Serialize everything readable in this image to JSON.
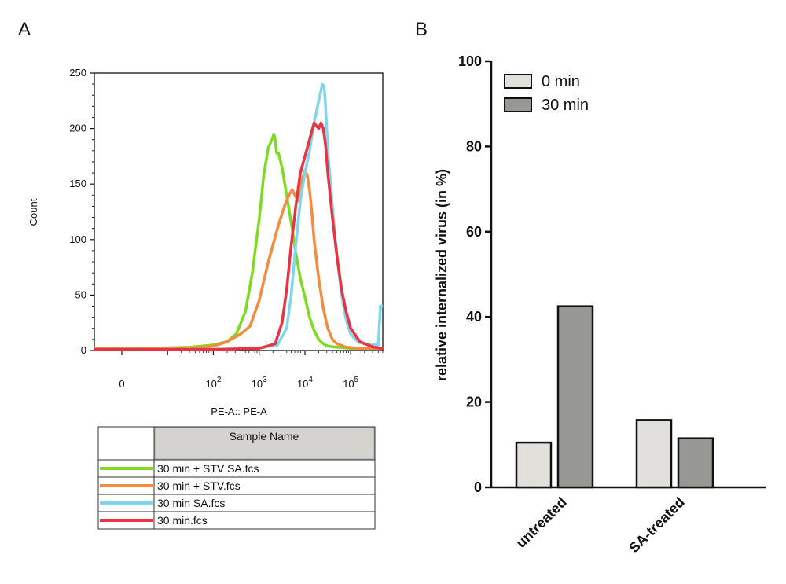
{
  "panel_a": {
    "label": "A"
  },
  "panel_b": {
    "label": "B"
  },
  "chart_data": [
    {
      "type": "line",
      "title": "",
      "xlabel": "PE-A:: PE-A",
      "ylabel": "Count",
      "xscale": "biexponential",
      "x_tick_labels": [
        {
          "base": "0",
          "exp": ""
        },
        {
          "base": "10",
          "exp": "2"
        },
        {
          "base": "10",
          "exp": "3"
        },
        {
          "base": "10",
          "exp": "4"
        },
        {
          "base": "10",
          "exp": "5"
        }
      ],
      "x_tick_values": [
        0,
        2,
        3,
        4,
        5
      ],
      "xlim": [
        -0.6,
        5.7
      ],
      "ylim": [
        0,
        250
      ],
      "yticks": [
        0,
        50,
        100,
        150,
        200,
        250
      ],
      "legend_header": "Sample Name",
      "series": [
        {
          "name": "30 min + STV SA.fcs",
          "color": "#7ddc1f",
          "x": [
            -0.6,
            0.5,
            1.5,
            2.0,
            2.3,
            2.5,
            2.7,
            2.85,
            3.0,
            3.1,
            3.2,
            3.28,
            3.32,
            3.35,
            3.38,
            3.42,
            3.5,
            3.6,
            3.7,
            3.8,
            3.9,
            4.0,
            4.1,
            4.2,
            4.3,
            4.4,
            4.5,
            4.7,
            5.0,
            5.7
          ],
          "y": [
            2,
            2,
            3,
            5,
            8,
            15,
            35,
            70,
            118,
            158,
            183,
            190,
            195,
            190,
            178,
            178,
            165,
            140,
            115,
            88,
            65,
            48,
            30,
            18,
            10,
            6,
            4,
            3,
            2,
            2
          ]
        },
        {
          "name": "30 min + STV.fcs",
          "color": "#f58b3c",
          "x": [
            -0.6,
            1.5,
            2.0,
            2.3,
            2.6,
            2.8,
            3.0,
            3.2,
            3.4,
            3.55,
            3.65,
            3.72,
            3.78,
            3.85,
            3.9,
            3.95,
            4.0,
            4.05,
            4.1,
            4.15,
            4.2,
            4.3,
            4.4,
            4.5,
            4.6,
            4.7,
            4.9,
            5.2,
            5.7
          ],
          "y": [
            2,
            2,
            4,
            8,
            15,
            22,
            45,
            80,
            110,
            130,
            140,
            145,
            140,
            135,
            148,
            155,
            162,
            158,
            145,
            125,
            100,
            65,
            38,
            20,
            10,
            6,
            3,
            2,
            2
          ]
        },
        {
          "name": "30 min SA.fcs",
          "color": "#7fd6ee",
          "x": [
            -0.6,
            2.0,
            3.0,
            3.4,
            3.6,
            3.7,
            3.8,
            3.9,
            4.0,
            4.1,
            4.2,
            4.3,
            4.38,
            4.42,
            4.45,
            4.5,
            4.6,
            4.7,
            4.8,
            4.9,
            5.0,
            5.1,
            5.2,
            5.4,
            5.6,
            5.65,
            5.7
          ],
          "y": [
            1,
            1,
            2,
            5,
            20,
            50,
            95,
            135,
            160,
            180,
            205,
            225,
            240,
            238,
            220,
            180,
            130,
            85,
            50,
            28,
            15,
            10,
            7,
            5,
            5,
            40,
            40
          ]
        },
        {
          "name": "30 min.fcs",
          "color": "#ea3340",
          "x": [
            -0.6,
            2.0,
            3.0,
            3.35,
            3.5,
            3.6,
            3.7,
            3.8,
            3.9,
            4.0,
            4.1,
            4.2,
            4.3,
            4.35,
            4.4,
            4.45,
            4.5,
            4.6,
            4.7,
            4.8,
            4.9,
            5.0,
            5.2,
            5.5,
            5.7
          ],
          "y": [
            1,
            1,
            2,
            6,
            25,
            55,
            95,
            130,
            160,
            175,
            190,
            205,
            200,
            205,
            200,
            185,
            160,
            120,
            85,
            55,
            35,
            20,
            8,
            3,
            2
          ]
        }
      ]
    },
    {
      "type": "bar",
      "title": "",
      "xlabel": "",
      "ylabel": "relative internalized virus (in %)",
      "categories": [
        "untreated",
        "SA-treated"
      ],
      "ylim": [
        0,
        100
      ],
      "yticks": [
        0,
        20,
        40,
        60,
        80,
        100
      ],
      "series": [
        {
          "name": "0 min",
          "color": "#e1e0dd",
          "values": [
            10.5,
            15.8
          ]
        },
        {
          "name": "30 min",
          "color": "#979894",
          "values": [
            42.5,
            11.5
          ]
        }
      ]
    }
  ]
}
